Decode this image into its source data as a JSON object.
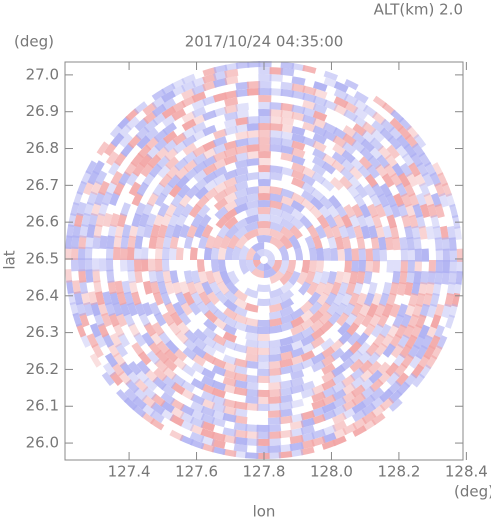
{
  "chart_data": {
    "type": "ppi",
    "title": "2017/10/24 04:35:00",
    "annotation": "ALT(km) 2.0",
    "x_label": "lon",
    "y_label": "lat",
    "x_unit": "(deg)",
    "y_unit": "(deg)",
    "xlim": [
      127.21,
      128.39
    ],
    "ylim": [
      25.954,
      27.035
    ],
    "xticks": [
      127.4,
      127.6,
      127.8,
      {
        "value": 128.0,
        "label": "128.0"
      },
      128.2,
      128.4
    ],
    "yticks": [
      {
        "value": 26.0,
        "label": "26.0"
      },
      26.1,
      26.2,
      26.3,
      26.4,
      26.5,
      26.6,
      26.7,
      26.8,
      26.9,
      {
        "value": 27.0,
        "label": "27.0"
      }
    ]
  }
}
